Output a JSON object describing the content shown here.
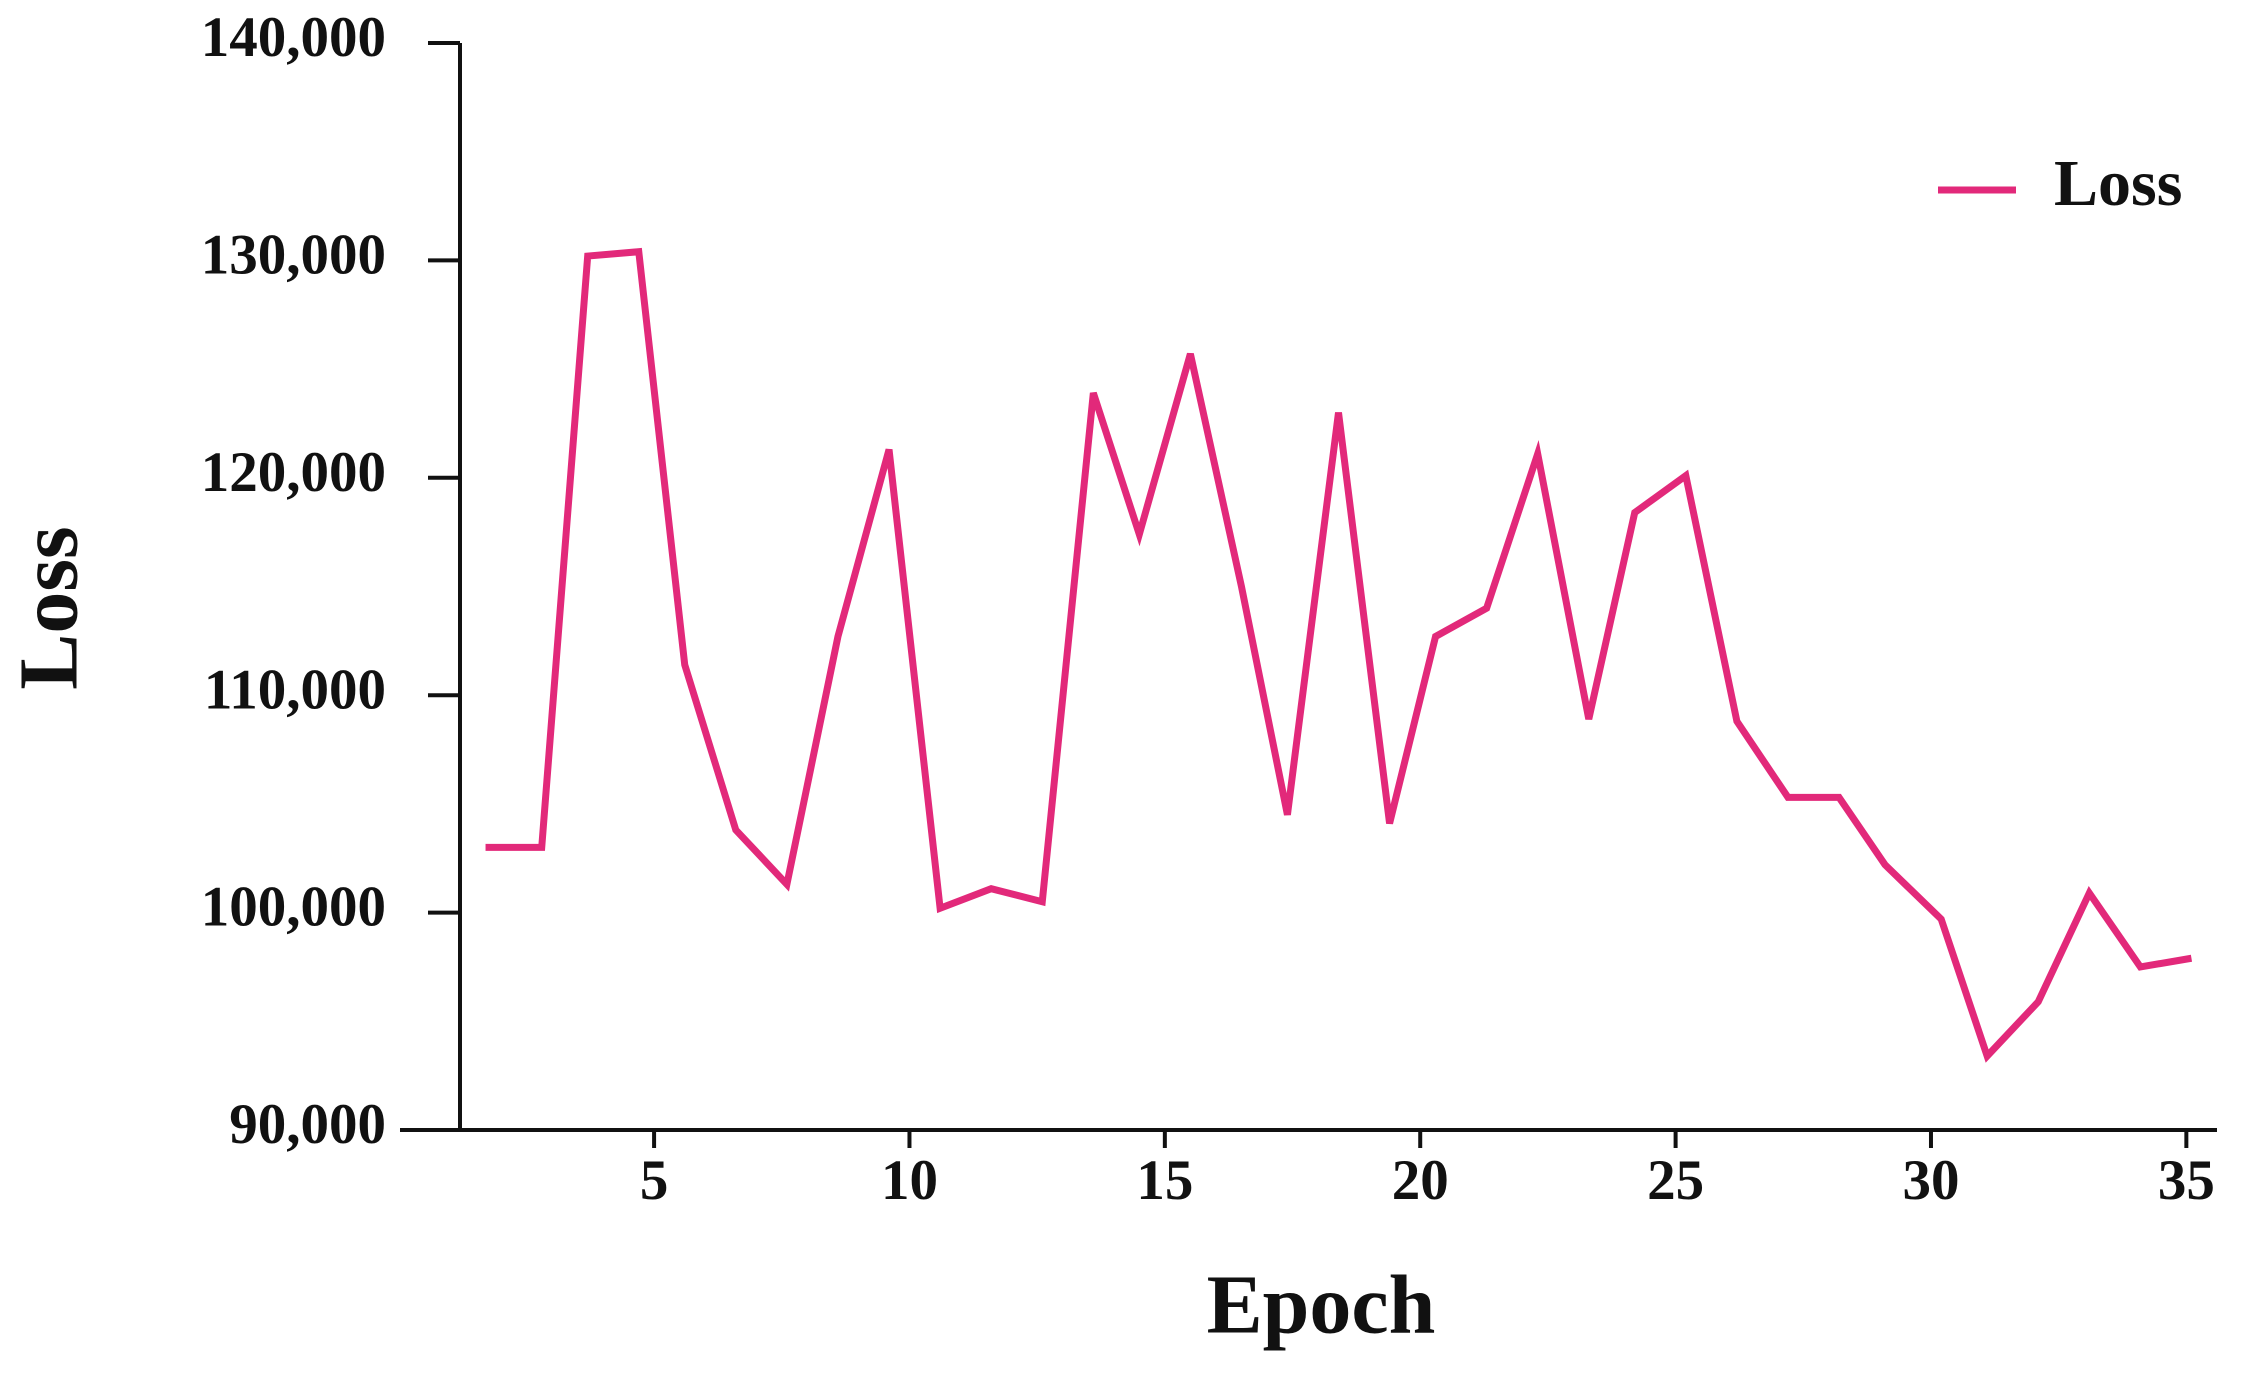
{
  "chart_data": {
    "type": "line",
    "xlabel": "Epoch",
    "ylabel": "Loss",
    "x": [
      1.7,
      2.8,
      3.7,
      4.7,
      5.6,
      6.6,
      7.6,
      8.6,
      9.6,
      10.6,
      11.6,
      12.6,
      13.6,
      14.5,
      15.5,
      16.5,
      17.4,
      18.4,
      19.4,
      20.3,
      21.3,
      22.3,
      23.3,
      24.2,
      25.2,
      26.2,
      27.2,
      28.2,
      29.1,
      30.2,
      31.1,
      32.1,
      33.1,
      34.1,
      35.1
    ],
    "series": [
      {
        "name": "Loss",
        "color": "#e2297a",
        "values": [
          103000,
          103000,
          130200,
          130400,
          111400,
          103800,
          101300,
          112700,
          121300,
          100200,
          101100,
          100500,
          123900,
          117400,
          125700,
          115000,
          104500,
          123000,
          104100,
          112700,
          114000,
          121100,
          108900,
          118400,
          120100,
          108800,
          105300,
          105300,
          102200,
          99700,
          93400,
          95900,
          100900,
          97500,
          97900
        ]
      }
    ],
    "xlim": [
      1.2,
      35.6
    ],
    "xticks": [
      5,
      10,
      15,
      20,
      25,
      30,
      35
    ],
    "ylim": [
      90000,
      140000
    ],
    "yticks": [
      {
        "value": 90000,
        "label": "90,000"
      },
      {
        "value": 100000,
        "label": "100,000"
      },
      {
        "value": 110000,
        "label": "110,000"
      },
      {
        "value": 120000,
        "label": "120,000"
      },
      {
        "value": 130000,
        "label": "130,000"
      },
      {
        "value": 140000,
        "label": "140,000"
      }
    ],
    "legend": "upper right",
    "grid": false
  }
}
